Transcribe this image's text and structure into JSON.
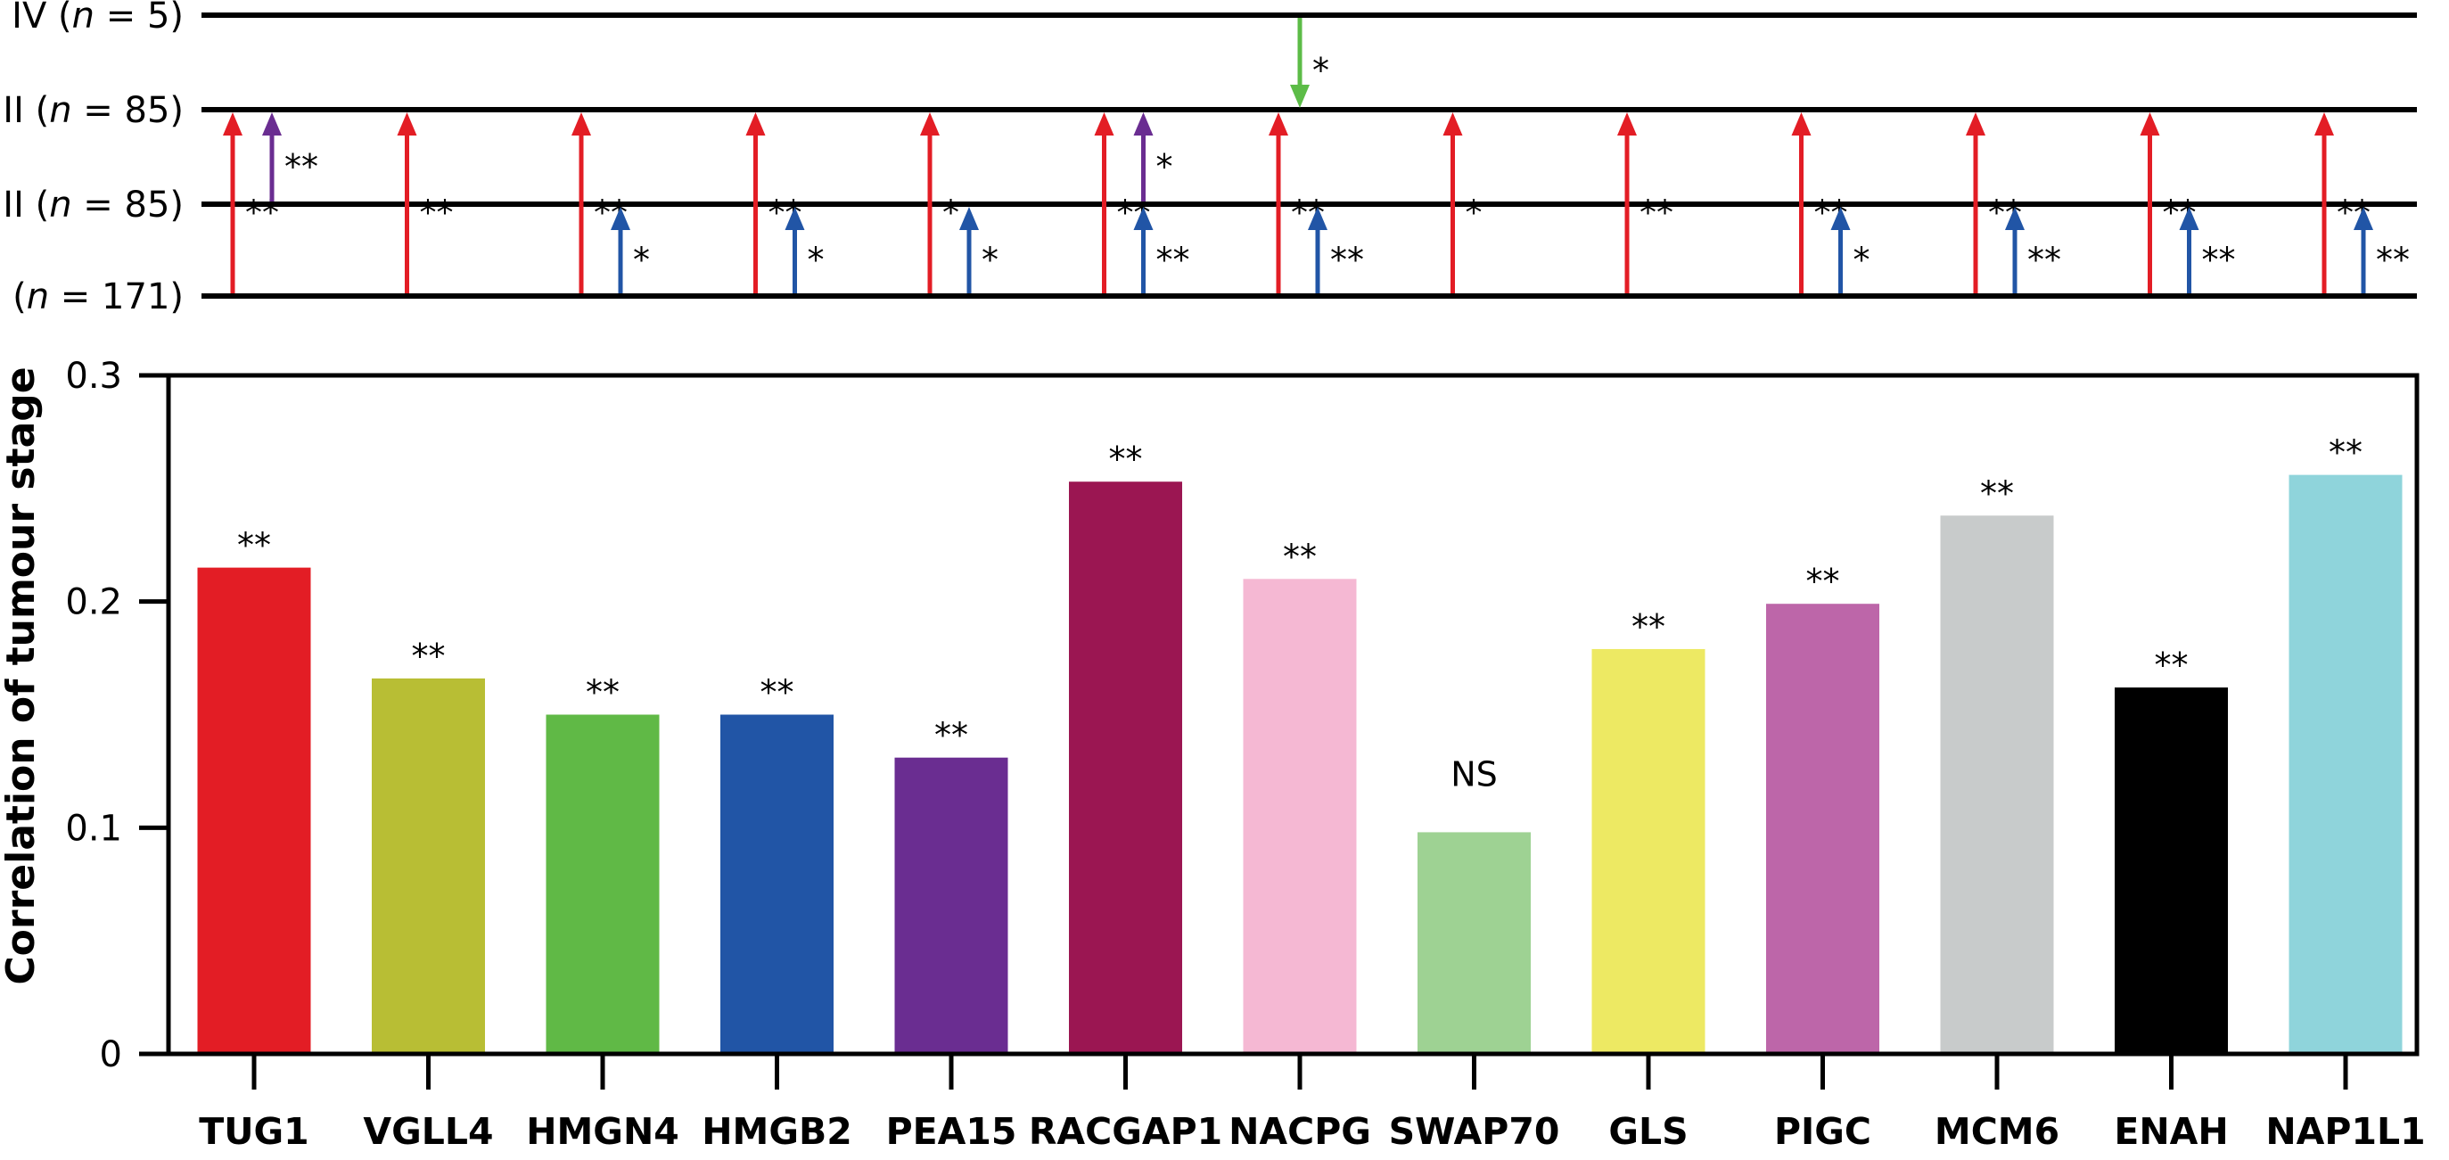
{
  "stage_panel": {
    "stages": [
      {
        "prefix": "IV (",
        "n": "n",
        "suffix": " = 5)"
      },
      {
        "prefix": "III (",
        "n": "n",
        "suffix": " = 85)"
      },
      {
        "prefix": "II (",
        "n": "n",
        "suffix": " = 85)"
      },
      {
        "prefix": "I (",
        "n": "n",
        "suffix": " = 171)"
      }
    ],
    "arrows": [
      {
        "gene": "TUG1",
        "from": "I",
        "to": "III",
        "color": "#e31d25",
        "sig": "**"
      },
      {
        "gene": "TUG1",
        "from": "II",
        "to": "III",
        "color": "#6a2d91",
        "sig": "**"
      },
      {
        "gene": "VGLL4",
        "from": "I",
        "to": "III",
        "color": "#e31d25",
        "sig": "**"
      },
      {
        "gene": "HMGN4",
        "from": "I",
        "to": "III",
        "color": "#e31d25",
        "sig": "**"
      },
      {
        "gene": "HMGN4",
        "from": "I",
        "to": "II",
        "color": "#2155a6",
        "sig": "*"
      },
      {
        "gene": "HMGB2",
        "from": "I",
        "to": "III",
        "color": "#e31d25",
        "sig": "**"
      },
      {
        "gene": "HMGB2",
        "from": "I",
        "to": "II",
        "color": "#2155a6",
        "sig": "*"
      },
      {
        "gene": "PEA15",
        "from": "I",
        "to": "III",
        "color": "#e31d25",
        "sig": "*"
      },
      {
        "gene": "PEA15",
        "from": "I",
        "to": "II",
        "color": "#2155a6",
        "sig": "*"
      },
      {
        "gene": "RACGAP1",
        "from": "I",
        "to": "III",
        "color": "#e31d25",
        "sig": "**"
      },
      {
        "gene": "RACGAP1",
        "from": "II",
        "to": "III",
        "color": "#6a2d91",
        "sig": "*"
      },
      {
        "gene": "RACGAP1",
        "from": "I",
        "to": "II",
        "color": "#2155a6",
        "sig": "**"
      },
      {
        "gene": "NACPG",
        "from": "IV",
        "to": "III",
        "color": "#5cbc47",
        "sig": "*"
      },
      {
        "gene": "NACPG",
        "from": "I",
        "to": "III",
        "color": "#e31d25",
        "sig": "**"
      },
      {
        "gene": "NACPG",
        "from": "I",
        "to": "II",
        "color": "#2155a6",
        "sig": "**"
      },
      {
        "gene": "SWAP70",
        "from": "I",
        "to": "III",
        "color": "#e31d25",
        "sig": "*"
      },
      {
        "gene": "GLS",
        "from": "I",
        "to": "III",
        "color": "#e31d25",
        "sig": "**"
      },
      {
        "gene": "PIGC",
        "from": "I",
        "to": "III",
        "color": "#e31d25",
        "sig": "**"
      },
      {
        "gene": "PIGC",
        "from": "I",
        "to": "II",
        "color": "#2155a6",
        "sig": "*"
      },
      {
        "gene": "MCM6",
        "from": "I",
        "to": "III",
        "color": "#e31d25",
        "sig": "**"
      },
      {
        "gene": "MCM6",
        "from": "I",
        "to": "II",
        "color": "#2155a6",
        "sig": "**"
      },
      {
        "gene": "ENAH",
        "from": "I",
        "to": "III",
        "color": "#e31d25",
        "sig": "**"
      },
      {
        "gene": "ENAH",
        "from": "I",
        "to": "II",
        "color": "#2155a6",
        "sig": "**"
      },
      {
        "gene": "NAP1L1",
        "from": "I",
        "to": "III",
        "color": "#e31d25",
        "sig": "**"
      },
      {
        "gene": "NAP1L1",
        "from": "I",
        "to": "II",
        "color": "#2155a6",
        "sig": "**"
      }
    ]
  },
  "chart_data": {
    "type": "bar",
    "categories": [
      "TUG1",
      "VGLL4",
      "HMGN4",
      "HMGB2",
      "PEA15",
      "RACGAP1",
      "NACPG",
      "SWAP70",
      "GLS",
      "PIGC",
      "MCM6",
      "ENAH",
      "NAP1L1"
    ],
    "values": [
      0.215,
      0.166,
      0.15,
      0.15,
      0.131,
      0.253,
      0.21,
      0.098,
      0.179,
      0.199,
      0.238,
      0.162,
      0.256
    ],
    "colors": [
      "#e31d25",
      "#b8be34",
      "#60b946",
      "#2155a6",
      "#6a2d91",
      "#9b1652",
      "#f5b8d3",
      "#9ed293",
      "#ede963",
      "#bd66a9",
      "#c8cbcb",
      "#000000",
      "#8fd4db"
    ],
    "significance": [
      "**",
      "**",
      "**",
      "**",
      "**",
      "**",
      "**",
      "NS",
      "**",
      "**",
      "**",
      "**",
      "**"
    ],
    "ylabel": "Correlation of tumour stage",
    "xlabel": "",
    "ylim": [
      0,
      0.3
    ],
    "yticks": [
      "0",
      "0.1",
      "0.2",
      "0.3"
    ],
    "grid": false,
    "legend": "none"
  }
}
